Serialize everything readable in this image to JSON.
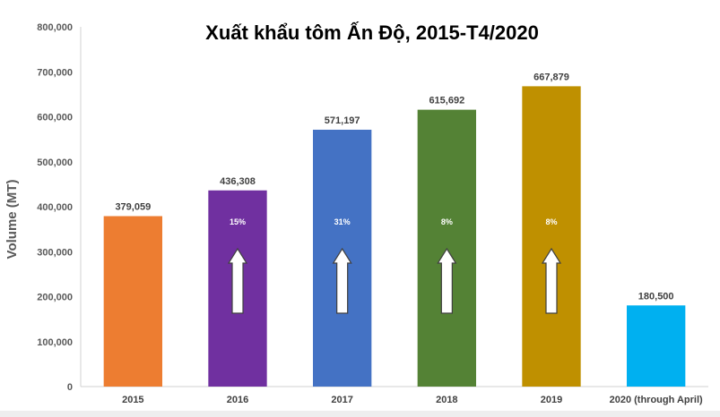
{
  "chart_data": {
    "type": "bar",
    "title": "Xuất khẩu tôm Ấn Độ, 2015-T4/2020",
    "xlabel": "",
    "ylabel": "Volume (MT)",
    "ylim": [
      0,
      800000
    ],
    "yticks": [
      0,
      100000,
      200000,
      300000,
      400000,
      500000,
      600000,
      700000,
      800000
    ],
    "ytick_labels": [
      "0",
      "100,000",
      "200,000",
      "300,000",
      "400,000",
      "500,000",
      "600,000",
      "700,000",
      "800,000"
    ],
    "grid": false,
    "legend": "none",
    "categories": [
      "2015",
      "2016",
      "2017",
      "2018",
      "2019",
      "2020 (through April)"
    ],
    "values": [
      379059,
      436308,
      571197,
      615692,
      667879,
      180500
    ],
    "value_labels": [
      "379,059",
      "436,308",
      "571,197",
      "615,692",
      "667,879",
      "180,500"
    ],
    "colors": [
      "#ED7D31",
      "#7030A0",
      "#4472C4",
      "#548235",
      "#BF9000",
      "#00B0F0"
    ],
    "growth_labels": [
      "",
      "15%",
      "31%",
      "8%",
      "8%",
      ""
    ],
    "growth_arrow": [
      false,
      true,
      true,
      true,
      true,
      false
    ]
  }
}
